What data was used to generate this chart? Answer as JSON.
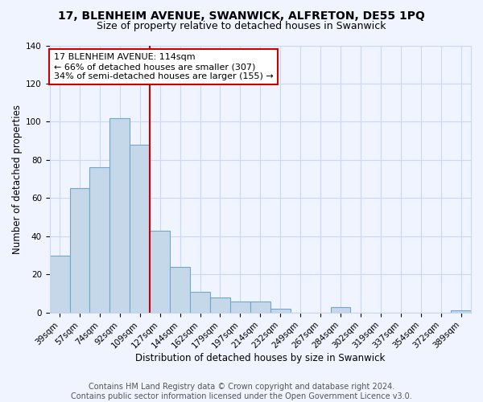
{
  "title": "17, BLENHEIM AVENUE, SWANWICK, ALFRETON, DE55 1PQ",
  "subtitle": "Size of property relative to detached houses in Swanwick",
  "xlabel": "Distribution of detached houses by size in Swanwick",
  "ylabel": "Number of detached properties",
  "bar_color": "#c5d8ea",
  "bar_edge_color": "#6fa8c8",
  "categories": [
    "39sqm",
    "57sqm",
    "74sqm",
    "92sqm",
    "109sqm",
    "127sqm",
    "144sqm",
    "162sqm",
    "179sqm",
    "197sqm",
    "214sqm",
    "232sqm",
    "249sqm",
    "267sqm",
    "284sqm",
    "302sqm",
    "319sqm",
    "337sqm",
    "354sqm",
    "372sqm",
    "389sqm"
  ],
  "values": [
    30,
    65,
    76,
    102,
    88,
    43,
    24,
    11,
    8,
    6,
    6,
    2,
    0,
    0,
    3,
    0,
    0,
    0,
    0,
    0,
    1
  ],
  "vline_x_index": 4,
  "vline_color": "#cc0000",
  "annotation_title": "17 BLENHEIM AVENUE: 114sqm",
  "annotation_line1": "← 66% of detached houses are smaller (307)",
  "annotation_line2": "34% of semi-detached houses are larger (155) →",
  "annotation_box_color": "#ffffff",
  "annotation_box_edge": "#cc0000",
  "ylim": [
    0,
    140
  ],
  "footer1": "Contains HM Land Registry data © Crown copyright and database right 2024.",
  "footer2": "Contains public sector information licensed under the Open Government Licence v3.0.",
  "background_color": "#f0f4ff",
  "grid_color": "#ccd8ee",
  "title_fontsize": 10,
  "subtitle_fontsize": 9,
  "axis_label_fontsize": 8.5,
  "tick_fontsize": 7.5,
  "annotation_fontsize": 8,
  "footer_fontsize": 7
}
